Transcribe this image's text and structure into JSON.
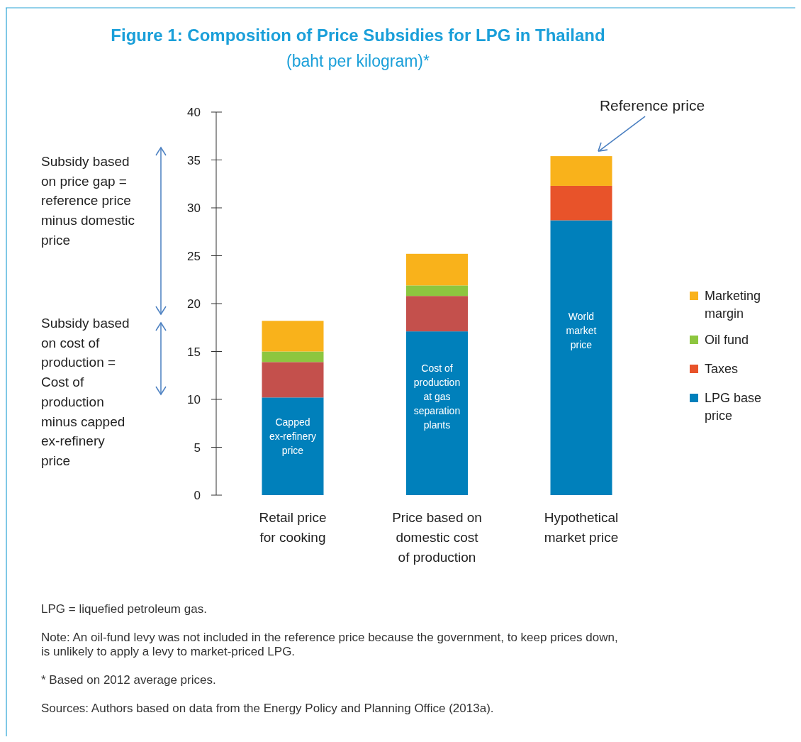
{
  "chart_data": {
    "type": "bar",
    "stacked": true,
    "title": "Figure 1: Composition of Price Subsidies for LPG in Thailand",
    "subtitle": "(baht per kilogram)*",
    "categories": [
      "Retail price for cooking",
      "Price based on domestic cost of production",
      "Hypothetical market price"
    ],
    "series": [
      {
        "name": "LPG base price",
        "color": "#0080bb",
        "values": [
          10.2,
          17.1,
          28.7
        ]
      },
      {
        "name": "Taxes",
        "color": "#e8532a",
        "colors": [
          "#c4504c",
          "#c4504c",
          "#e8532a"
        ],
        "values": [
          3.7,
          3.7,
          3.6
        ]
      },
      {
        "name": "Oil fund",
        "color": "#8dc63f",
        "values": [
          1.1,
          1.1,
          0
        ]
      },
      {
        "name": "Marketing margin",
        "color": "#f9b21b",
        "values": [
          3.2,
          3.3,
          3.1
        ]
      }
    ],
    "ylim": [
      0,
      40
    ],
    "yticks": [
      0,
      5,
      10,
      15,
      20,
      25,
      30,
      35,
      40
    ],
    "grid": false,
    "legend": "right",
    "annotations": [
      "Subsidy based on price gap = reference price minus domestic price",
      "Subsidy based on cost of production = Cost of production minus capped ex-refinery price",
      "Capped ex-refinery price",
      "Cost of production at gas separation plants",
      "World market price",
      "Reference price",
      "LPG = liquefied petroleum gas.",
      "Note: An oil-fund levy was not included in the reference price because the government, to keep prices down, is unlikely to apply a levy to market-priced LPG.",
      "*  Based on 2012 average prices.",
      "Sources: Authors based on data from the Energy Policy and Planning Office (2013a)."
    ]
  }
}
